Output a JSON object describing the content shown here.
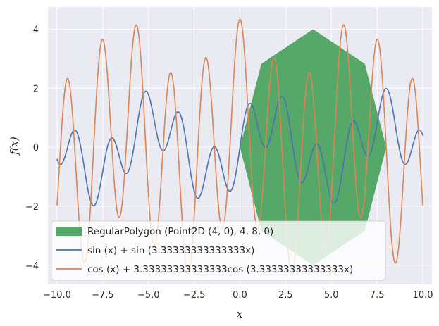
{
  "chart_data": {
    "type": "line",
    "xlabel": "x",
    "ylabel": "f(x)",
    "xlim": [
      -10.5,
      10.5
    ],
    "ylim": [
      -4.65,
      4.75
    ],
    "xticks": [
      -10,
      -7.5,
      -5,
      -2.5,
      0,
      2.5,
      5,
      7.5,
      10
    ],
    "xtick_labels": [
      "−10.0",
      "−7.5",
      "−5.0",
      "−2.5",
      "0.0",
      "2.5",
      "5.0",
      "7.5",
      "10.0"
    ],
    "yticks": [
      -4,
      -2,
      0,
      2,
      4
    ],
    "ytick_labels": [
      "−4",
      "−2",
      "0",
      "2",
      "4"
    ],
    "grid": true,
    "legend_position": "lower-left",
    "polygon": {
      "name": "RegularPolygon (Point2D (4, 0), 4, 8, 0)",
      "center": [
        4,
        0
      ],
      "radius": 4,
      "sides": 8,
      "rotation": 0,
      "color": "#55a868"
    },
    "series": [
      {
        "name": "sin (x) + sin (3.33333333333333x)",
        "expression": "sin(x) + sin(3.33333333333333*x)",
        "x_range": [
          -10,
          10
        ],
        "color": "#4c72b0"
      },
      {
        "name": "cos (x) + 3.33333333333333cos (3.33333333333333x)",
        "expression": "cos(x) + 3.33333333333333*cos(3.33333333333333*x)",
        "x_range": [
          -10,
          10
        ],
        "color": "#dd8452"
      }
    ]
  }
}
